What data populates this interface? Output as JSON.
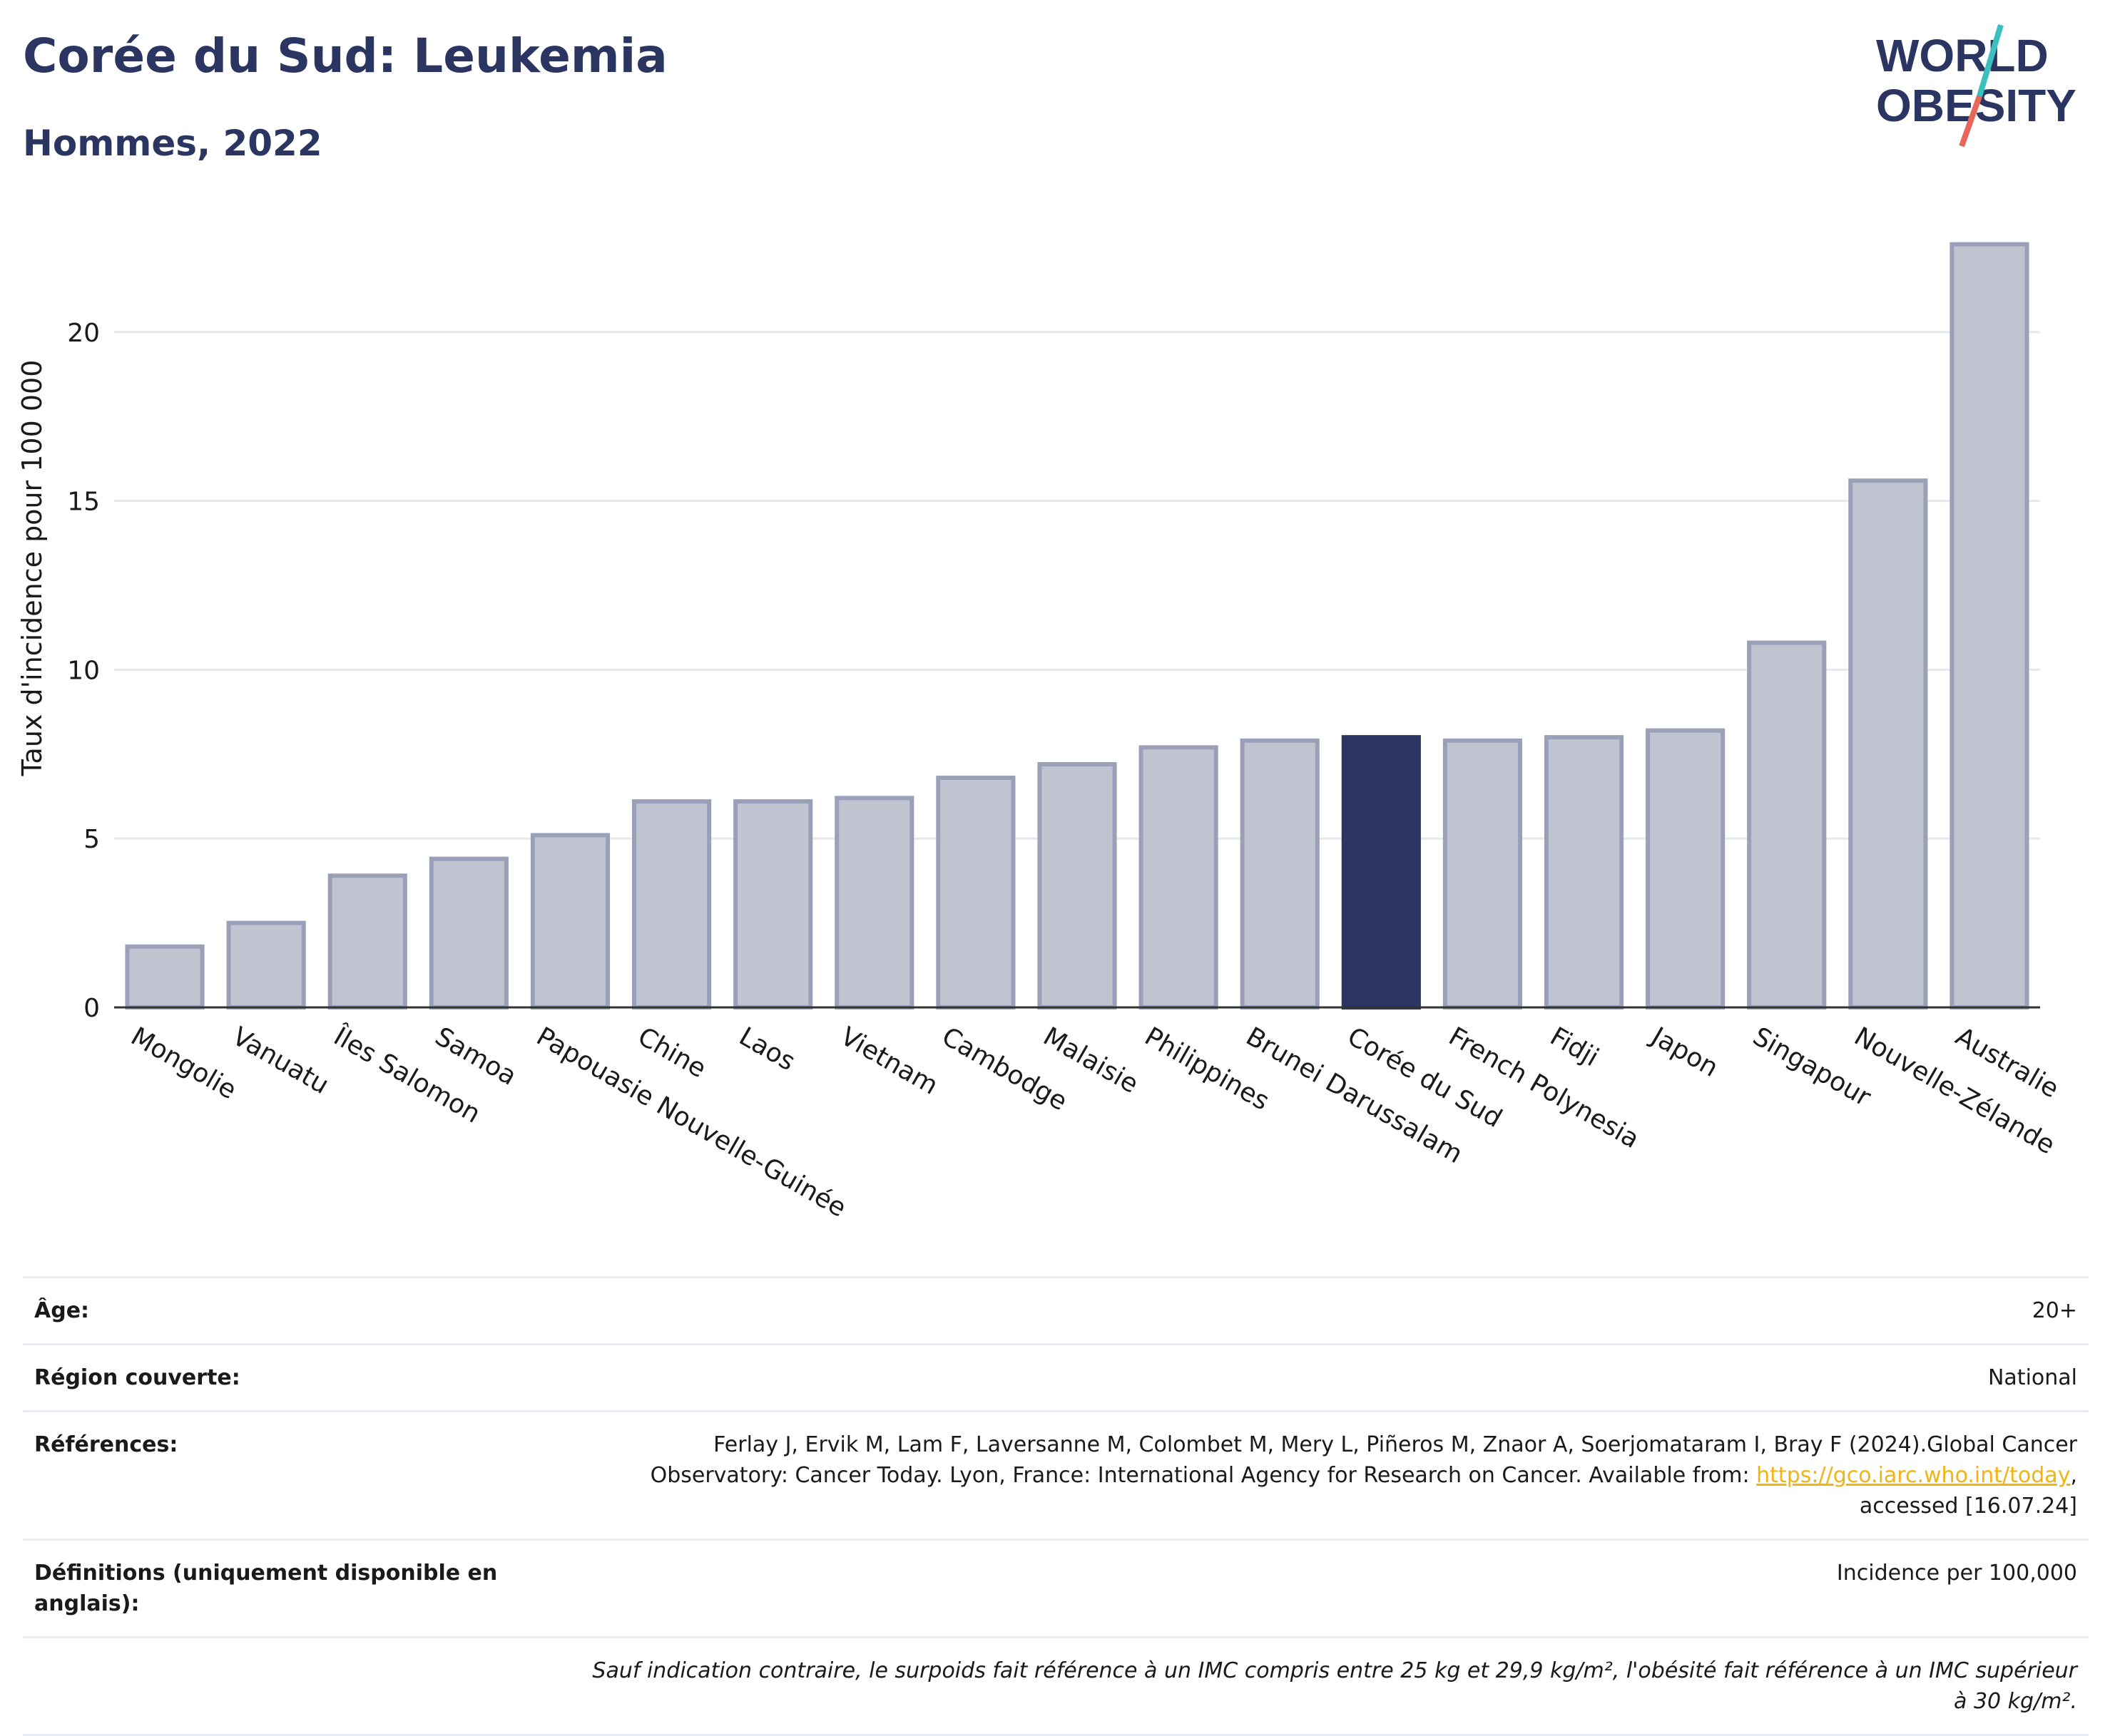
{
  "header": {
    "title": "Corée du Sud: Leukemia",
    "subtitle": "Hommes, 2022"
  },
  "logo": {
    "line1": "WORLD",
    "line2": "OBESITY"
  },
  "colors": {
    "bar": "#c0c4d1",
    "bar_stroke": "#9aa0b8",
    "highlight": "#2b3561",
    "text": "#1a1a1a",
    "grid": "#e6e8ef"
  },
  "chart_data": {
    "type": "bar",
    "ylabel": "Taux d'incidence pour 100 000",
    "ylim": [
      0,
      23.5
    ],
    "yticks": [
      0,
      5,
      10,
      15,
      20
    ],
    "highlight": "Corée du Sud",
    "categories": [
      "Mongolie",
      "Vanuatu",
      "Îles Salomon",
      "Samoa",
      "Papouasie Nouvelle-Guinée",
      "Chine",
      "Laos",
      "Vietnam",
      "Cambodge",
      "Malaisie",
      "Philippines",
      "Brunei Darussalam",
      "Corée du Sud",
      "French Polynesia",
      "Fidji",
      "Japon",
      "Singapour",
      "Nouvelle-Zélande",
      "Australie"
    ],
    "values": [
      1.8,
      2.5,
      3.9,
      4.4,
      5.1,
      6.1,
      6.1,
      6.2,
      6.8,
      7.2,
      7.7,
      7.9,
      8.0,
      7.9,
      8.0,
      8.2,
      10.8,
      15.6,
      22.6
    ]
  },
  "info": {
    "age_label": "Âge:",
    "age_value": "20+",
    "region_label": "Région couverte:",
    "region_value": "National",
    "references_label": "Références:",
    "references_line1": "Ferlay J, Ervik M, Lam F, Laversanne M, Colombet M, Mery L, Piñeros M, Znaor A, Soerjomataram I, Bray F (2024).Global Cancer",
    "references_line2": "Observatory: Cancer Today. Lyon, France: International Agency for Research on Cancer. Available from: ",
    "references_link": "https://gco.iarc.who.int/today",
    "references_line3": "accessed [16.07.24]",
    "definitions_label": "Définitions (uniquement disponible en anglais):",
    "definitions_value": "Incidence per 100,000",
    "note": "Sauf indication contraire, le surpoids fait référence à un IMC compris entre 25 kg et 29,9 kg/m², l'obésité fait référence à un IMC supérieur à 30 kg/m²."
  }
}
